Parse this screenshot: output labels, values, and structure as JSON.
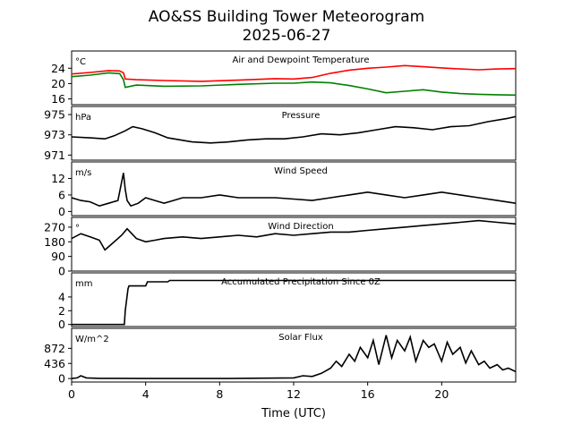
{
  "figure": {
    "title_line1": "AO&SS Building Tower Meteorogram",
    "title_line2": "2025-06-27",
    "xlabel": "Time (UTC)"
  },
  "chart_data": [
    {
      "type": "line",
      "title": "Air and Dewpoint Temperature",
      "unit_label": "°C",
      "ylim": [
        14.5,
        28.5
      ],
      "yticks": [
        "16",
        "20",
        "24"
      ],
      "xlim": [
        0,
        24
      ],
      "xticks": [
        "0",
        "4",
        "8",
        "12",
        "16",
        "20"
      ],
      "series": [
        {
          "color": "#ff0000",
          "x": [
            0,
            1,
            2,
            2.6,
            2.8,
            2.9,
            3.5,
            5,
            7,
            9,
            11,
            12,
            13,
            14,
            15,
            16,
            17,
            18,
            19,
            20,
            21,
            22,
            23,
            24
          ],
          "values": [
            22.5,
            22.9,
            23.4,
            23.3,
            22.8,
            21.2,
            21.0,
            20.8,
            20.6,
            20.9,
            21.3,
            21.2,
            21.6,
            22.7,
            23.5,
            24.0,
            24.3,
            24.7,
            24.4,
            24.1,
            23.8,
            23.6,
            23.8,
            23.9
          ]
        },
        {
          "color": "#008000",
          "x": [
            0,
            1,
            2,
            2.6,
            2.8,
            2.9,
            3.5,
            5,
            7,
            9,
            11,
            12,
            13,
            14,
            15,
            16,
            17,
            18,
            19,
            20,
            21,
            22,
            23,
            24
          ],
          "values": [
            21.8,
            22.2,
            22.8,
            22.6,
            21.0,
            19.0,
            19.6,
            19.3,
            19.4,
            19.8,
            20.1,
            20.1,
            20.4,
            20.2,
            19.5,
            18.6,
            17.6,
            18.0,
            18.4,
            17.8,
            17.4,
            17.2,
            17.1,
            17.0
          ]
        }
      ]
    },
    {
      "type": "line",
      "title": "Pressure",
      "unit_label": "hPa",
      "ylim": [
        970.5,
        975.8
      ],
      "yticks": [
        "971",
        "973",
        "975"
      ],
      "xlim": [
        0,
        24
      ],
      "series": [
        {
          "color": "#000000",
          "x": [
            0,
            1,
            1.8,
            2.3,
            2.9,
            3.3,
            3.8,
            4.5,
            5.2,
            6.5,
            7.5,
            8.5,
            9.5,
            10.5,
            11.5,
            12.5,
            13.5,
            14.5,
            15.5,
            16.5,
            17.5,
            18.5,
            19.5,
            20.5,
            21.5,
            22.5,
            23.5,
            24
          ],
          "values": [
            972.8,
            972.7,
            972.6,
            972.9,
            973.4,
            973.8,
            973.6,
            973.2,
            972.7,
            972.3,
            972.2,
            972.3,
            972.5,
            972.6,
            972.6,
            972.8,
            973.1,
            973.0,
            973.2,
            973.5,
            973.8,
            973.7,
            973.5,
            973.8,
            973.9,
            974.3,
            974.6,
            974.8
          ]
        }
      ]
    },
    {
      "type": "line",
      "title": "Wind Speed",
      "unit_label": "m/s",
      "ylim": [
        -1.5,
        18
      ],
      "yticks": [
        "0",
        "6",
        "12"
      ],
      "xlim": [
        0,
        24
      ],
      "series": [
        {
          "color": "#000000",
          "x": [
            0,
            0.5,
            1,
            1.5,
            2,
            2.5,
            2.8,
            2.9,
            3.0,
            3.2,
            3.6,
            4,
            4.5,
            5,
            5.5,
            6,
            7,
            8,
            9,
            10,
            11,
            12,
            13,
            14,
            15,
            16,
            17,
            18,
            19,
            20,
            21,
            22,
            23,
            24
          ],
          "values": [
            5,
            4,
            3.5,
            2,
            3,
            4,
            14,
            8,
            4,
            2,
            3,
            5,
            4,
            3,
            4,
            5,
            5,
            6,
            5,
            5,
            5,
            4.5,
            4,
            5,
            6,
            7,
            6,
            5,
            6,
            7,
            6,
            5,
            4,
            3
          ]
        }
      ]
    },
    {
      "type": "line",
      "title": "Wind Direction",
      "unit_label": "°",
      "ylim": [
        0,
        330
      ],
      "yticks": [
        "0",
        "90",
        "180",
        "270"
      ],
      "xlim": [
        0,
        24
      ],
      "series": [
        {
          "color": "#000000",
          "x": [
            0,
            0.5,
            1,
            1.5,
            1.8,
            2.2,
            2.7,
            3.0,
            3.5,
            4,
            4.5,
            5,
            6,
            7,
            8,
            9,
            10,
            11,
            12,
            13,
            14,
            15,
            16,
            17,
            18,
            19,
            20,
            21,
            22,
            23,
            24
          ],
          "values": [
            200,
            230,
            210,
            190,
            130,
            170,
            220,
            260,
            200,
            180,
            190,
            200,
            210,
            200,
            210,
            220,
            210,
            230,
            220,
            230,
            240,
            240,
            250,
            260,
            270,
            280,
            290,
            300,
            310,
            300,
            290
          ]
        }
      ]
    },
    {
      "type": "line",
      "title": "Accumulated Precipitation Since 0Z",
      "unit_label": "mm",
      "ylim": [
        -0.3,
        7.5
      ],
      "yticks": [
        "0",
        "2",
        "4"
      ],
      "xlim": [
        0,
        24
      ],
      "series": [
        {
          "color": "#000000",
          "x": [
            0,
            2.85,
            2.9,
            3.05,
            3.1,
            4.0,
            4.1,
            5.2,
            5.3,
            24
          ],
          "values": [
            0,
            0,
            2,
            5.2,
            5.6,
            5.6,
            6.2,
            6.2,
            6.4,
            6.4
          ]
        }
      ]
    },
    {
      "type": "line",
      "title": "Solar Flux",
      "unit_label": "W/m^2",
      "ylim": [
        -100,
        1450
      ],
      "yticks": [
        "0",
        "436",
        "872"
      ],
      "xlim": [
        0,
        24
      ],
      "series": [
        {
          "color": "#000000",
          "x": [
            0,
            0.3,
            0.5,
            0.8,
            1.5,
            4,
            8,
            12,
            12.5,
            13,
            13.5,
            14,
            14.3,
            14.6,
            15,
            15.3,
            15.6,
            16,
            16.3,
            16.6,
            17,
            17.3,
            17.6,
            18,
            18.3,
            18.6,
            19,
            19.3,
            19.6,
            20,
            20.3,
            20.6,
            21,
            21.3,
            21.6,
            22,
            22.3,
            22.6,
            23,
            23.3,
            23.6,
            24
          ],
          "values": [
            0,
            20,
            80,
            20,
            5,
            0,
            0,
            20,
            80,
            60,
            150,
            300,
            500,
            350,
            700,
            500,
            900,
            600,
            1100,
            400,
            1250,
            600,
            1100,
            800,
            1200,
            500,
            1100,
            900,
            1000,
            500,
            1050,
            700,
            900,
            450,
            800,
            400,
            500,
            300,
            400,
            250,
            300,
            200
          ]
        }
      ]
    }
  ]
}
